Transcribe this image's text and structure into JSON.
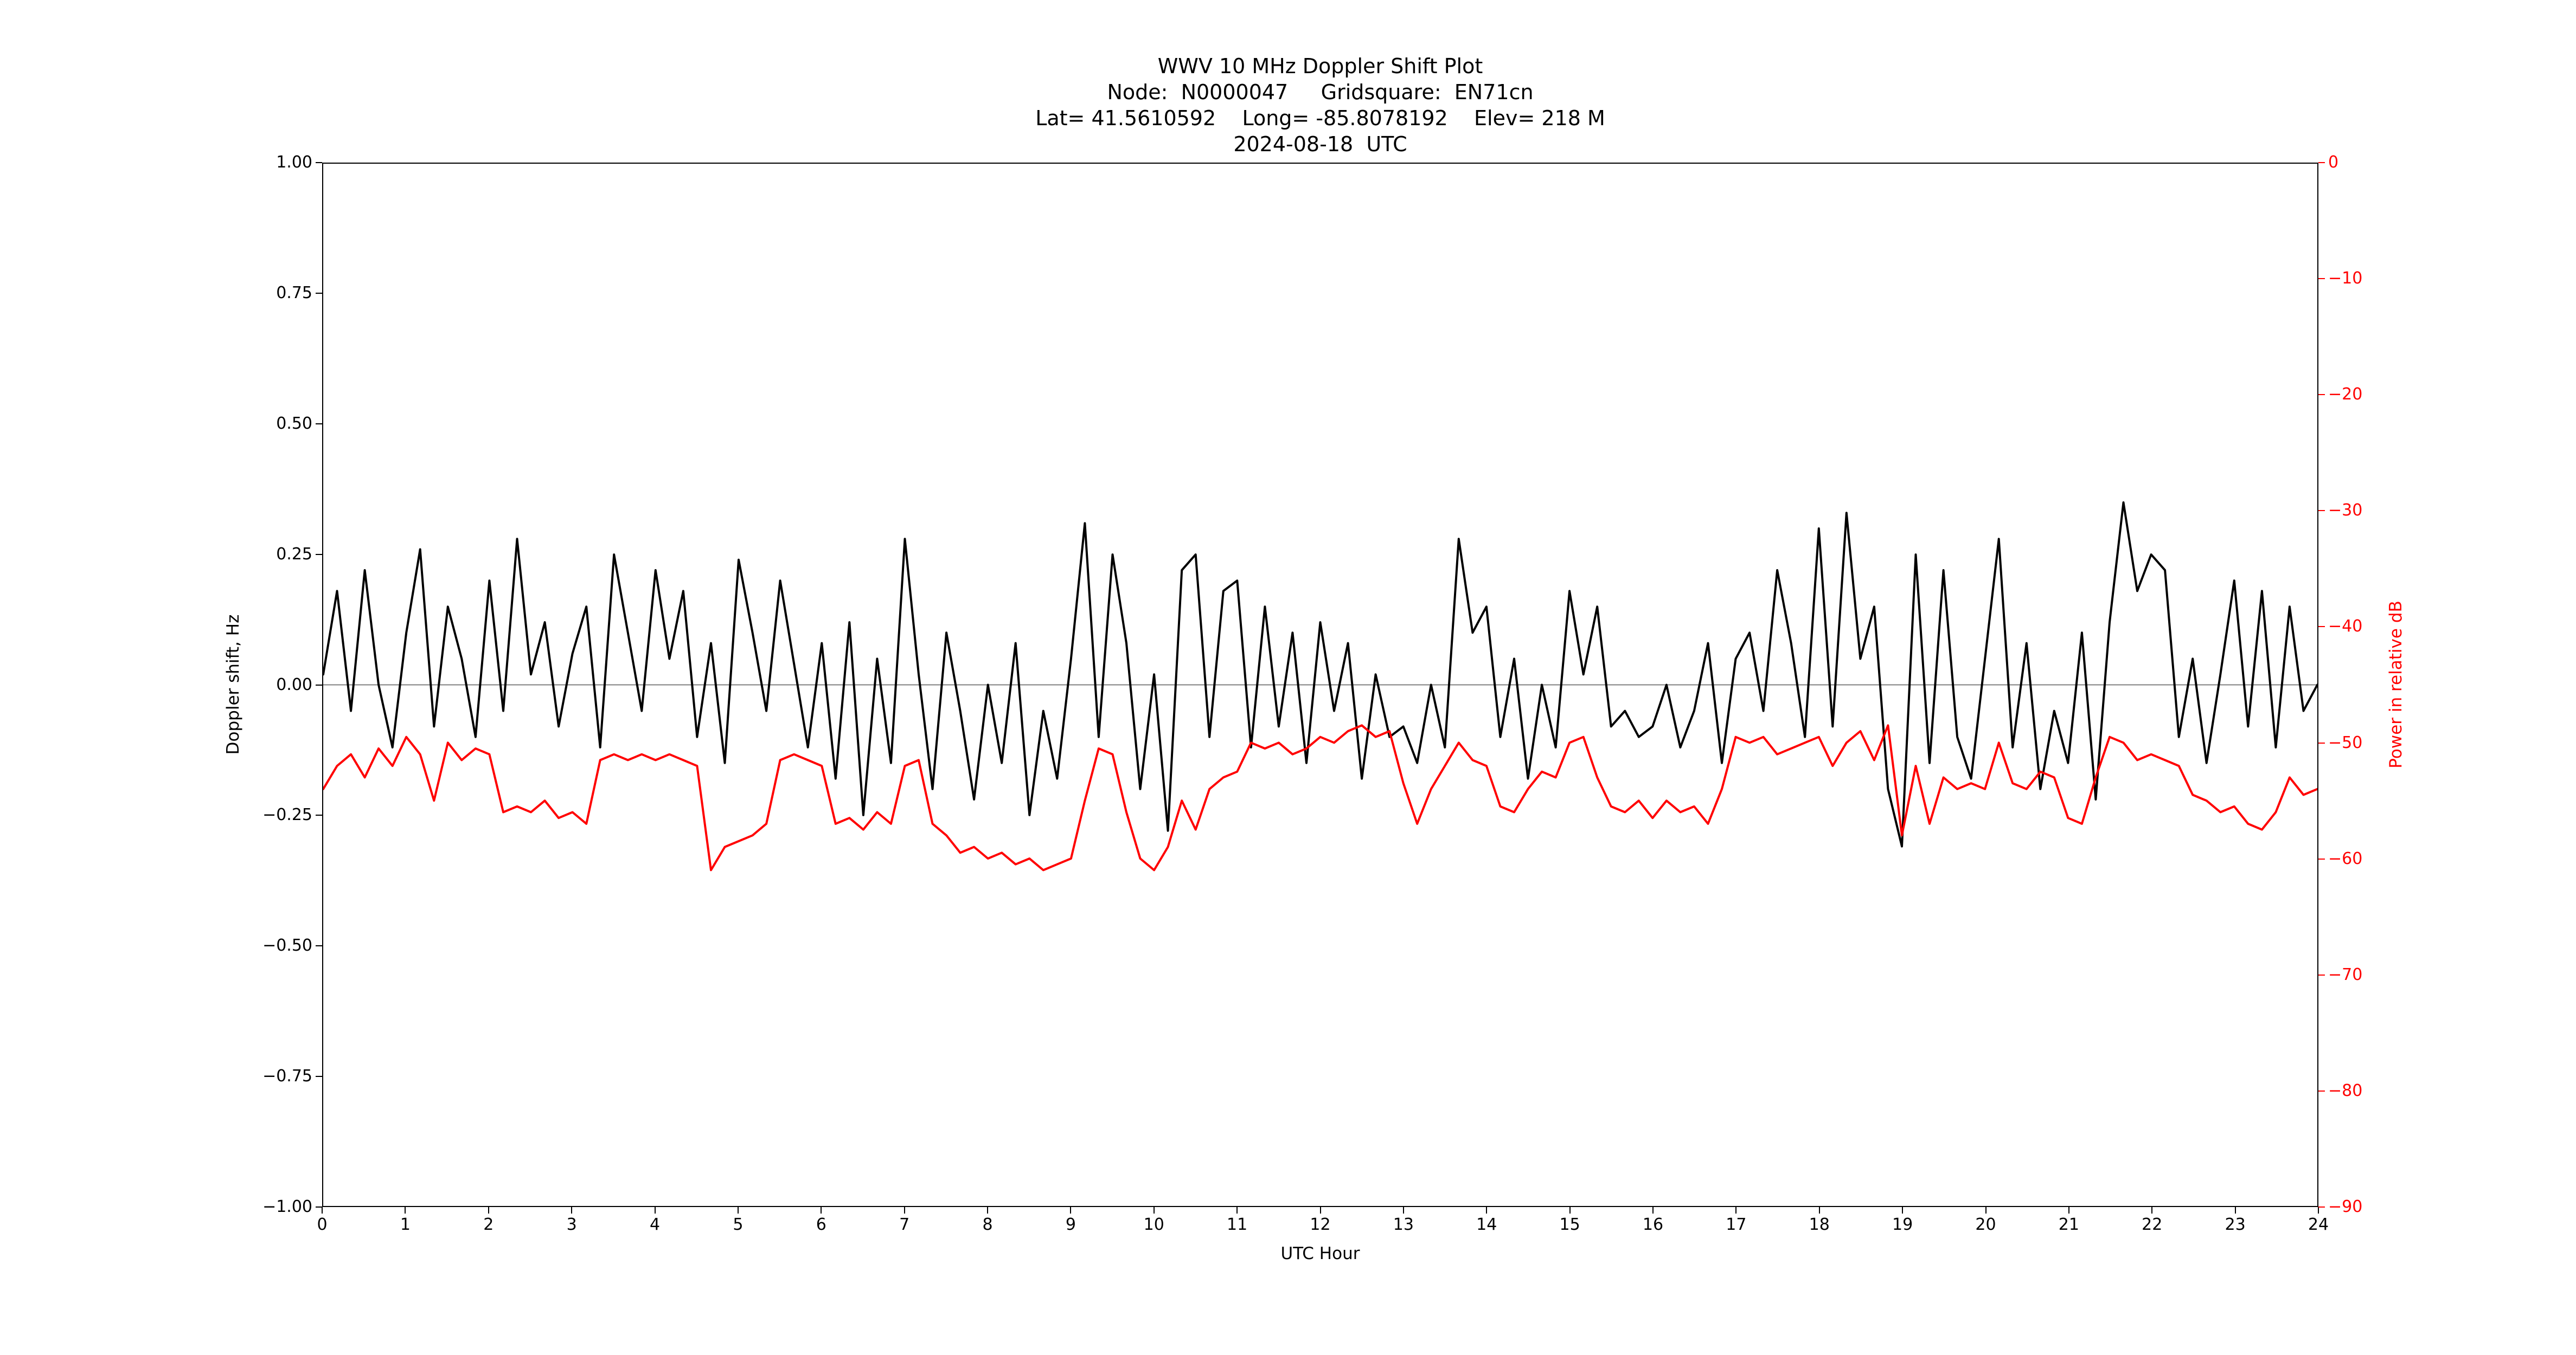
{
  "title": {
    "line1": "WWV 10 MHz Doppler Shift Plot",
    "line2": "Node:  N0000047     Gridsquare:  EN71cn",
    "line3": "Lat= 41.5610592    Long= -85.8078192    Elev= 218 M",
    "line4": "2024-08-18  UTC"
  },
  "axes": {
    "x": {
      "label": "UTC Hour",
      "min": 0,
      "max": 24,
      "tick_values": [
        0,
        1,
        2,
        3,
        4,
        5,
        6,
        7,
        8,
        9,
        10,
        11,
        12,
        13,
        14,
        15,
        16,
        17,
        18,
        19,
        20,
        21,
        22,
        23,
        24
      ],
      "tick_labels": [
        "0",
        "1",
        "2",
        "3",
        "4",
        "5",
        "6",
        "7",
        "8",
        "9",
        "10",
        "11",
        "12",
        "13",
        "14",
        "15",
        "16",
        "17",
        "18",
        "19",
        "20",
        "21",
        "22",
        "23",
        "24"
      ]
    },
    "y_left": {
      "label": "Doppler shift, Hz",
      "min": -1.0,
      "max": 1.0,
      "tick_values": [
        1.0,
        0.75,
        0.5,
        0.25,
        0.0,
        -0.25,
        -0.5,
        -0.75,
        -1.0
      ],
      "tick_labels": [
        "1.00",
        "0.75",
        "0.50",
        "0.25",
        "0.00",
        "−0.25",
        "−0.50",
        "−0.75",
        "−1.00"
      ],
      "color": "#000000"
    },
    "y_right": {
      "label": "Power in relative dB",
      "min": -90,
      "max": 0,
      "tick_values": [
        0,
        -10,
        -20,
        -30,
        -40,
        -50,
        -60,
        -70,
        -80,
        -90
      ],
      "tick_labels": [
        "0",
        "−10",
        "−20",
        "−30",
        "−40",
        "−50",
        "−60",
        "−70",
        "−80",
        "−90"
      ],
      "color": "#ff0000"
    }
  },
  "chart_data": {
    "type": "line",
    "title": "WWV 10 MHz Doppler Shift Plot",
    "xlabel": "UTC Hour",
    "ylabel_left": "Doppler shift, Hz",
    "ylabel_right": "Power in relative dB",
    "xlim": [
      0,
      24
    ],
    "ylim_left": [
      -1.0,
      1.0
    ],
    "ylim_right": [
      -90,
      0
    ],
    "grid": false,
    "legend": "none",
    "sampling": "uniform 10-minute intervals, values estimated from plot",
    "zero_line": {
      "value": 0.0,
      "axis": "left",
      "color": "#808080"
    },
    "series": [
      {
        "name": "Doppler shift (Hz)",
        "axis": "left",
        "color": "#000000",
        "values": [
          0.02,
          0.18,
          -0.05,
          0.22,
          0.0,
          -0.12,
          0.1,
          0.26,
          -0.08,
          0.15,
          0.05,
          -0.1,
          0.2,
          -0.05,
          0.28,
          0.02,
          0.12,
          -0.08,
          0.06,
          0.15,
          -0.12,
          0.25,
          0.1,
          -0.05,
          0.22,
          0.05,
          0.18,
          -0.1,
          0.08,
          -0.15,
          0.24,
          0.1,
          -0.05,
          0.2,
          0.04,
          -0.12,
          0.08,
          -0.18,
          0.12,
          -0.25,
          0.05,
          -0.15,
          0.28,
          0.02,
          -0.2,
          0.1,
          -0.05,
          -0.22,
          0.0,
          -0.15,
          0.08,
          -0.25,
          -0.05,
          -0.18,
          0.05,
          0.31,
          -0.1,
          0.25,
          0.08,
          -0.2,
          0.02,
          -0.28,
          0.22,
          0.25,
          -0.1,
          0.18,
          0.2,
          -0.12,
          0.15,
          -0.08,
          0.1,
          -0.15,
          0.12,
          -0.05,
          0.08,
          -0.18,
          0.02,
          -0.1,
          -0.08,
          -0.15,
          0.0,
          -0.12,
          0.28,
          0.1,
          0.15,
          -0.1,
          0.05,
          -0.18,
          0.0,
          -0.12,
          0.18,
          0.02,
          0.15,
          -0.08,
          -0.05,
          -0.1,
          -0.08,
          0.0,
          -0.12,
          -0.05,
          0.08,
          -0.15,
          0.05,
          0.1,
          -0.05,
          0.22,
          0.08,
          -0.1,
          0.3,
          -0.08,
          0.33,
          0.05,
          0.15,
          -0.2,
          -0.31,
          0.25,
          -0.15,
          0.22,
          -0.1,
          -0.18,
          0.05,
          0.28,
          -0.12,
          0.08,
          -0.2,
          -0.05,
          -0.15,
          0.1,
          -0.22,
          0.12,
          0.35,
          0.18,
          0.25,
          0.22,
          -0.1,
          0.05,
          -0.15,
          0.02,
          0.2,
          -0.08,
          0.18,
          -0.12,
          0.15,
          -0.05,
          0.0
        ]
      },
      {
        "name": "Power in relative dB",
        "axis": "right",
        "color": "#ff0000",
        "values": [
          -54,
          -52,
          -51,
          -53,
          -50.5,
          -52,
          -49.5,
          -51,
          -55,
          -50,
          -51.5,
          -50.5,
          -51,
          -56,
          -55.5,
          -56,
          -55,
          -56.5,
          -56,
          -57,
          -51.5,
          -51,
          -51.5,
          -51,
          -51.5,
          -51,
          -51.5,
          -52,
          -61,
          -59,
          -58.5,
          -58,
          -57,
          -51.5,
          -51,
          -51.5,
          -52,
          -57,
          -56.5,
          -57.5,
          -56,
          -57,
          -52,
          -51.5,
          -57,
          -58,
          -59.5,
          -59,
          -60,
          -59.5,
          -60.5,
          -60,
          -61,
          -60.5,
          -60,
          -55,
          -50.5,
          -51,
          -56,
          -60,
          -61,
          -59,
          -55,
          -57.5,
          -54,
          -53,
          -52.5,
          -50,
          -50.5,
          -50,
          -51,
          -50.5,
          -49.5,
          -50,
          -49,
          -48.5,
          -49.5,
          -49,
          -53.5,
          -57,
          -54,
          -52,
          -50,
          -51.5,
          -52,
          -55.5,
          -56,
          -54,
          -52.5,
          -53,
          -50,
          -49.5,
          -53,
          -55.5,
          -56,
          -55,
          -56.5,
          -55,
          -56,
          -55.5,
          -57,
          -54,
          -49.5,
          -50,
          -49.5,
          -51,
          -50.5,
          -50,
          -49.5,
          -52,
          -50,
          -49,
          -51.5,
          -48.5,
          -58,
          -52,
          -57,
          -53,
          -54,
          -53.5,
          -54,
          -50,
          -53.5,
          -54,
          -52.5,
          -53,
          -56.5,
          -57,
          -53,
          -49.5,
          -50,
          -51.5,
          -51,
          -51.5,
          -52,
          -54.5,
          -55,
          -56,
          -55.5,
          -57,
          -57.5,
          -56,
          -53,
          -54.5,
          -54
        ]
      }
    ]
  }
}
